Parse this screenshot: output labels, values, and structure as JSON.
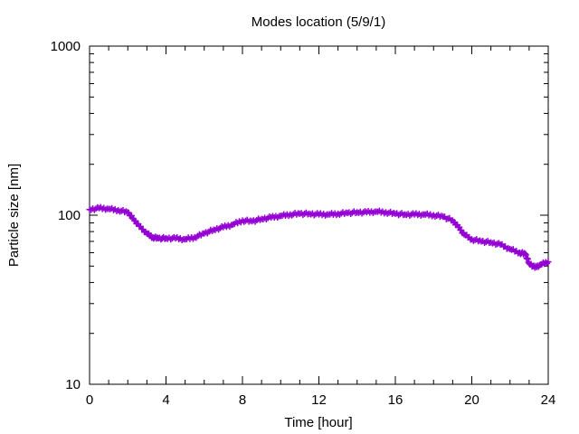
{
  "chart_data": {
    "type": "line",
    "title": "Modes location (5/9/1)",
    "xlabel": "Time [hour]",
    "ylabel": "Particle size [nm]",
    "xlim": [
      0,
      24
    ],
    "ylim": [
      10,
      1000
    ],
    "yscale": "log",
    "grid": false,
    "legend": "none",
    "x_ticks": [
      0,
      4,
      8,
      12,
      16,
      20,
      24
    ],
    "x_tick_labels": [
      "0",
      "4",
      "8",
      "12",
      "16",
      "20",
      "24"
    ],
    "y_ticks": [
      10,
      100,
      1000
    ],
    "y_tick_labels": [
      "10",
      "100",
      "1000"
    ],
    "series": [
      {
        "color": "#9400d3",
        "marker": "plus",
        "x": [
          0,
          0.5,
          1,
          1.5,
          2,
          2.3,
          2.6,
          3,
          3.3,
          3.6,
          4,
          4.5,
          5,
          5.5,
          6,
          6.5,
          7,
          7.5,
          8,
          8.5,
          9,
          9.5,
          10,
          10.5,
          11,
          11.5,
          12,
          12.5,
          13,
          13.5,
          14,
          14.5,
          15,
          15.5,
          16,
          16.5,
          17,
          17.5,
          18,
          18.5,
          19,
          19.3,
          19.6,
          20,
          20.5,
          21,
          21.5,
          22,
          22.5,
          22.8,
          23,
          23.3,
          23.6,
          24
        ],
        "y": [
          108,
          110,
          109,
          107,
          104,
          95,
          86,
          78,
          74,
          73,
          73,
          73,
          72,
          74,
          78,
          82,
          85,
          88,
          93,
          92,
          95,
          97,
          99,
          101,
          102,
          102,
          101,
          101,
          102,
          103,
          104,
          104,
          105,
          104,
          102,
          101,
          101,
          101,
          100,
          98,
          93,
          85,
          77,
          72,
          70,
          69,
          67,
          63,
          60,
          59,
          52,
          49,
          51,
          53
        ]
      }
    ]
  }
}
